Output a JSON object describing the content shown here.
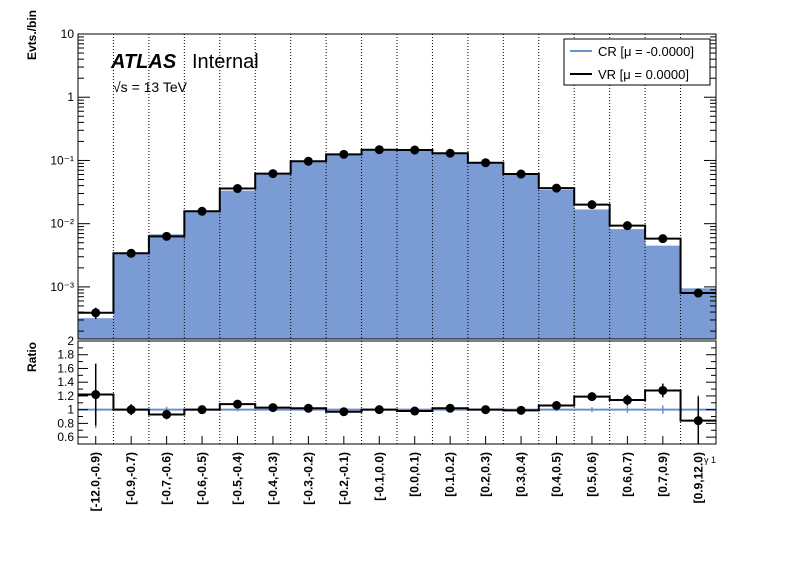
{
  "header": {
    "experiment": "ATLAS",
    "status": "Internal",
    "energy_label": "√s = 13 TeV"
  },
  "legend": {
    "items": [
      {
        "label": "CR [μ = -0.0000]",
        "color": "#6d8fcc",
        "style": "line"
      },
      {
        "label": "VR [μ = 0.0000]",
        "color": "#000000",
        "style": "line"
      }
    ]
  },
  "x_axis_label_corner": "γ 1",
  "chart_data": [
    {
      "type": "bar",
      "ylabel": "Evts./bin",
      "yscale": "log",
      "ylim": [
        0.00015,
        10
      ],
      "ytick_labels": [
        "10",
        "1",
        "10⁻¹",
        "10⁻²",
        "10⁻³"
      ],
      "ytick_values": [
        10,
        1,
        0.1,
        0.01,
        0.001
      ],
      "categories": [
        "[-12.0,-0.9)",
        "[-0.9,-0.7)",
        "[-0.7,-0.6)",
        "[-0.6,-0.5)",
        "[-0.5,-0.4)",
        "[-0.4,-0.3)",
        "[-0.3,-0.2)",
        "[-0.2,-0.1)",
        "[-0.1,0.0)",
        "[0.0,0.1)",
        "[0.1,0.2)",
        "[0.2,0.3)",
        "[0.3,0.4)",
        "[0.4,0.5)",
        "[0.5,0.6)",
        "[0.6,0.7)",
        "[0.7,0.9)",
        "[0.9,12.0)"
      ],
      "series": [
        {
          "name": "CR [μ = -0.0000]",
          "style": "filled",
          "color": "#7a9bd3",
          "values": [
            0.00032,
            0.0034,
            0.0068,
            0.0157,
            0.0333,
            0.06,
            0.095,
            0.128,
            0.148,
            0.148,
            0.128,
            0.092,
            0.062,
            0.0345,
            0.0168,
            0.0082,
            0.0045,
            0.00095
          ]
        },
        {
          "name": "VR [μ = 0.0000]",
          "style": "step",
          "color": "#000000",
          "values": [
            0.00039,
            0.0034,
            0.0063,
            0.0157,
            0.036,
            0.062,
            0.097,
            0.125,
            0.148,
            0.146,
            0.13,
            0.092,
            0.061,
            0.0365,
            0.02,
            0.0093,
            0.0058,
            0.0008
          ],
          "errors": [
            8e-05,
            0.0002,
            0.0003,
            0.0005,
            0.0008,
            0.001,
            0.0015,
            0.0015,
            0.0015,
            0.0015,
            0.0015,
            0.0012,
            0.001,
            0.0008,
            0.0005,
            0.0004,
            0.0003,
            0.00012
          ]
        }
      ],
      "grid": "vertical dotted"
    },
    {
      "type": "line",
      "ylabel": "Ratio",
      "ylim": [
        0.5,
        2.0
      ],
      "ytick_labels": [
        "0.6",
        "0.8",
        "1",
        "1.2",
        "1.4",
        "1.6",
        "1.8",
        "2"
      ],
      "ytick_values": [
        0.6,
        0.8,
        1.0,
        1.2,
        1.4,
        1.6,
        1.8,
        2.0
      ],
      "reference_line": 1.0,
      "values": [
        1.22,
        1.0,
        0.93,
        1.0,
        1.08,
        1.03,
        1.02,
        0.97,
        1.0,
        0.98,
        1.02,
        1.0,
        0.99,
        1.06,
        1.19,
        1.14,
        1.28,
        0.84
      ],
      "errors": [
        0.45,
        0.08,
        0.07,
        0.05,
        0.04,
        0.04,
        0.03,
        0.03,
        0.03,
        0.03,
        0.03,
        0.03,
        0.04,
        0.04,
        0.06,
        0.08,
        0.1,
        0.35
      ]
    }
  ]
}
